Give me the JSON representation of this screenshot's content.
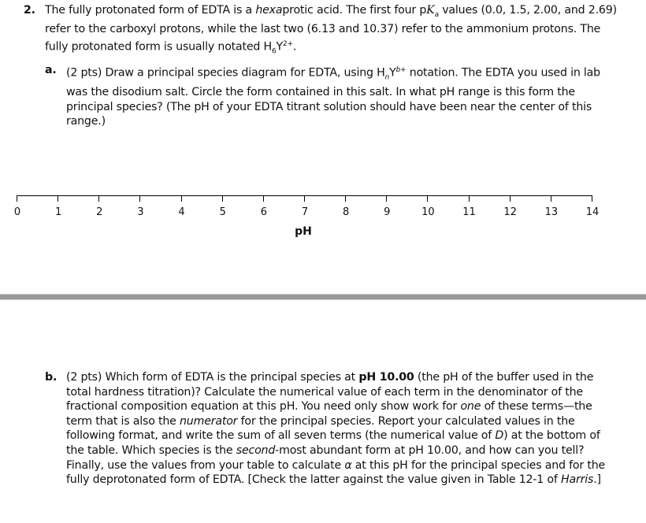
{
  "q2": {
    "number": "2.",
    "p1": "The fully protonated form of EDTA is a ",
    "p1_em": "hexa",
    "p1b": "protic acid. The first four p",
    "ka": "K",
    "ka_sub": "a",
    "p2": " values (0.0, 1.5, 2.00, and 2.69) refer to the carboxyl protons, while the last two (6.13 and 10.37) refer to the ammonium protons. The fully protonated form is usually notated H",
    "sub6": "6",
    "y": "Y",
    "sup": "2+",
    "end": "."
  },
  "qa": {
    "number": "a.",
    "p1": "(2 pts) Draw a principal species diagram for EDTA, using H",
    "sub_n": "n",
    "y": "Y",
    "sup_b": "b+",
    "p2": " notation. The EDTA you used in lab was the disodium salt. Circle the form contained in this salt. In what pH range is this form the principal species? (The pH of your EDTA titrant solution should have been near the center of this range.)"
  },
  "axis": {
    "label": "pH",
    "ticks": [
      "0",
      "1",
      "2",
      "3",
      "4",
      "5",
      "6",
      "7",
      "8",
      "9",
      "10",
      "11",
      "12",
      "13",
      "14"
    ],
    "min": 0,
    "max": 14
  },
  "qb": {
    "number": "b.",
    "p1": "(2 pts) Which form of EDTA is the principal species at ",
    "bold_ph": "pH 10.00",
    "p2": " (the pH of the buffer used in the total hardness titration)? Calculate the numerical value of each term in the denominator of the fractional composition equation at this pH. You need only show work for ",
    "em_one": "one",
    "p3": " of these terms—the term that is also the ",
    "em_num": "numerator",
    "p4": " for the principal species. Report your calculated values in the following format, and write the sum of all seven terms (the numerical value of ",
    "em_d": "D",
    "p5": ") at the bottom of the table. Which species is the ",
    "em_second": "second",
    "p6": "-most abundant form at pH 10.00, and how can you tell? Finally, use the values from your table to calculate ",
    "alpha": "α",
    "p7": " at this pH for the principal species and for the fully deprotonated form of EDTA. [Check the latter against the value given in Table 12-1 of ",
    "em_harris": "Harris",
    "p8": ".]"
  }
}
